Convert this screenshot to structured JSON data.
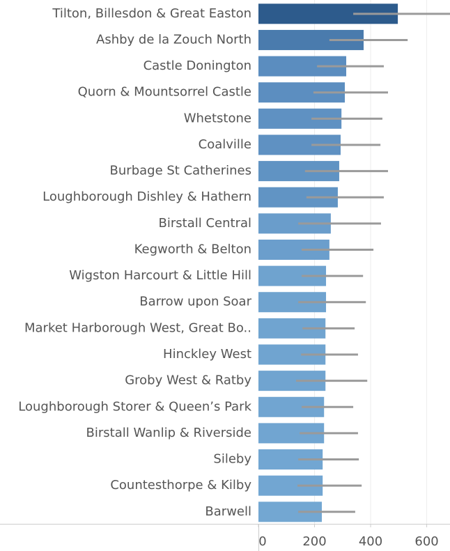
{
  "chart_data": {
    "type": "bar",
    "orientation": "horizontal",
    "categories": [
      "Tilton, Billesdon & Great Easton",
      "Ashby de la Zouch North",
      "Castle Donington",
      "Quorn & Mountsorrel Castle",
      "Whetstone",
      "Coalville",
      "Burbage St Catherines",
      "Loughborough Dishley & Hathern",
      "Birstall Central",
      "Kegworth & Belton",
      "Wigston Harcourt & Little Hill",
      "Barrow upon Soar",
      "Market Harborough West, Great Bo..",
      "Hinckley West",
      "Groby West & Ratby",
      "Loughborough Storer & Queen’s Park",
      "Birstall Wanlip & Riverside",
      "Sileby",
      "Countesthorpe & Kilby",
      "Barwell"
    ],
    "values": [
      497,
      375,
      313,
      308,
      296,
      293,
      288,
      283,
      258,
      253,
      241,
      241,
      239,
      239,
      239,
      234,
      234,
      229,
      229,
      226
    ],
    "ci_low": [
      338,
      253,
      209,
      196,
      189,
      189,
      166,
      171,
      142,
      154,
      154,
      142,
      157,
      152,
      134,
      154,
      147,
      142,
      139,
      142
    ],
    "ci_high": [
      685,
      532,
      447,
      462,
      442,
      435,
      462,
      447,
      437,
      410,
      373,
      383,
      343,
      355,
      388,
      338,
      355,
      358,
      368,
      345
    ],
    "colors": [
      "#2d5b8c",
      "#4a7bad",
      "#5b8dbf",
      "#5c8ec0",
      "#5f91c2",
      "#5f91c2",
      "#6093c3",
      "#6194c4",
      "#6a9dcb",
      "#6b9ecc",
      "#6fa3cf",
      "#6fa3cf",
      "#70a4d0",
      "#70a4d0",
      "#70a4d0",
      "#71a5d1",
      "#71a5d1",
      "#72a6d2",
      "#72a6d2",
      "#73a7d2"
    ],
    "error_color": "#9a9a9a",
    "xlim": [
      0,
      683
    ],
    "xticks": [
      0,
      200,
      400,
      600
    ],
    "grid": true
  }
}
